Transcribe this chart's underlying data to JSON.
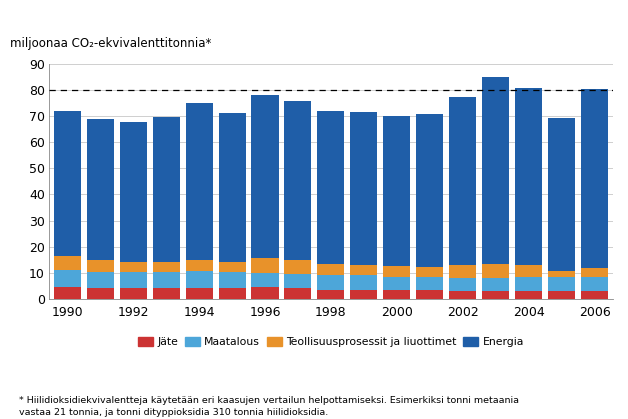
{
  "years": [
    1990,
    1991,
    1992,
    1993,
    1994,
    1995,
    1996,
    1997,
    1998,
    1999,
    2000,
    2001,
    2002,
    2003,
    2004,
    2005,
    2006
  ],
  "jate": [
    4.5,
    4.0,
    4.0,
    4.0,
    4.0,
    4.2,
    4.5,
    4.0,
    3.5,
    3.5,
    3.5,
    3.2,
    3.0,
    3.0,
    3.0,
    2.8,
    2.8
  ],
  "maatalous": [
    6.5,
    6.2,
    6.2,
    6.2,
    6.5,
    6.0,
    5.5,
    5.5,
    5.5,
    5.5,
    5.0,
    5.0,
    5.0,
    5.0,
    5.5,
    5.5,
    5.5
  ],
  "teollisuus": [
    5.5,
    4.8,
    4.0,
    4.0,
    4.5,
    4.0,
    5.5,
    5.5,
    4.5,
    4.0,
    4.0,
    4.0,
    5.0,
    5.5,
    4.5,
    2.5,
    3.5
  ],
  "energia": [
    55.5,
    54.0,
    53.5,
    55.5,
    60.0,
    57.0,
    62.5,
    61.0,
    58.5,
    58.5,
    57.5,
    58.5,
    64.5,
    71.5,
    68.0,
    58.5,
    68.5
  ],
  "colors": {
    "jate": "#cc3333",
    "maatalous": "#4da6d9",
    "teollisuus": "#e8922a",
    "energia": "#1f5ea8"
  },
  "dashed_line_value": 80,
  "ylim": [
    0,
    90
  ],
  "yticks": [
    0,
    10,
    20,
    30,
    40,
    50,
    60,
    70,
    80,
    90
  ],
  "ylabel": "miljoonaa CO₂-ekvivalenttitonnia*",
  "legend_labels": [
    "Jäte",
    "Maatalous",
    "Teollisuusprosessit ja liuottimet",
    "Energia"
  ],
  "footnote": "* Hiilidioksidiekvivalentteja käytetään eri kaasujen vertailun helpottamiseksi. Esimerkiksi tonni metaania\nvastaa 21 tonnia, ja tonni dityppioksidia 310 tonnia hiilidioksidia.",
  "background_color": "#ffffff"
}
